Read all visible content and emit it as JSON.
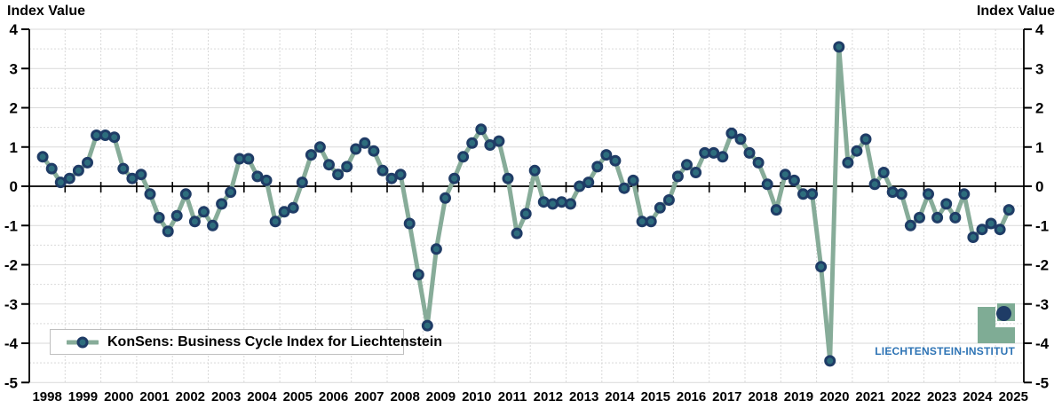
{
  "axis_titles": {
    "left": "Index Value",
    "right": "Index Value"
  },
  "legend": {
    "label": "KonSens: Business Cycle Index for Liechtenstein"
  },
  "logo": {
    "text": "LIECHTENSTEIN-INSTITUT"
  },
  "chart_data": {
    "type": "line",
    "title": "",
    "series_name": "KonSens: Business Cycle Index for Liechtenstein",
    "frequency": "quarterly",
    "start_period": "1998Q2",
    "end_period": "2025Q2",
    "n_points": 109,
    "ylim": [
      -5,
      4
    ],
    "grid": "on",
    "legend_position": "bottom-left-inside",
    "y_ticks": [
      4,
      3,
      2,
      1,
      0,
      -1,
      -2,
      -3,
      -4,
      -5
    ],
    "y_tick_labels": [
      "4",
      "3",
      "2",
      "1",
      "0",
      "-1",
      "-2",
      "-3",
      "-4",
      "-5"
    ],
    "x_tick_labels": [
      "1998",
      "1999",
      "2000",
      "2001",
      "2002",
      "2003",
      "2004",
      "2005",
      "2006",
      "2007",
      "2008",
      "2009",
      "2010",
      "2011",
      "2012",
      "2013",
      "2014",
      "2015",
      "2016",
      "2017",
      "2018",
      "2019",
      "2020",
      "2021",
      "2022",
      "2023",
      "2024",
      "2025"
    ],
    "values": [
      0.75,
      0.45,
      0.1,
      0.2,
      0.4,
      0.6,
      1.3,
      1.3,
      1.25,
      0.45,
      0.2,
      0.3,
      -0.2,
      -0.8,
      -1.15,
      -0.75,
      -0.2,
      -0.9,
      -0.65,
      -1.0,
      -0.45,
      -0.15,
      0.7,
      0.7,
      0.25,
      0.15,
      -0.9,
      -0.65,
      -0.55,
      0.1,
      0.8,
      1.0,
      0.55,
      0.3,
      0.5,
      0.95,
      1.1,
      0.9,
      0.4,
      0.2,
      0.3,
      -0.95,
      -2.25,
      -3.55,
      -1.6,
      -0.3,
      0.2,
      0.75,
      1.1,
      1.45,
      1.05,
      1.15,
      0.2,
      -1.2,
      -0.7,
      0.4,
      -0.4,
      -0.45,
      -0.4,
      -0.45,
      0.0,
      0.1,
      0.5,
      0.8,
      0.65,
      -0.05,
      0.15,
      -0.9,
      -0.9,
      -0.55,
      -0.35,
      0.25,
      0.55,
      0.35,
      0.85,
      0.85,
      0.75,
      1.35,
      1.2,
      0.85,
      0.6,
      0.05,
      -0.6,
      0.3,
      0.15,
      -0.2,
      -0.2,
      -2.05,
      -4.45,
      3.55,
      0.6,
      0.9,
      1.2,
      0.05,
      0.35,
      -0.15,
      -0.2,
      -1.0,
      -0.8,
      -0.2,
      -0.8,
      -0.45,
      -0.8,
      -0.2,
      -1.3,
      -1.1,
      -0.95,
      -1.1,
      -0.6
    ],
    "colors": {
      "line": "#87ac99",
      "marker_fill": "#2d6d7d",
      "marker_stroke": "#1f3c66",
      "grid": "#d9d9d9",
      "axis": "#000000",
      "logo_green": "#7fac95",
      "institute_blue": "#2e74b5",
      "legend_border": "#bfbfbf"
    }
  }
}
